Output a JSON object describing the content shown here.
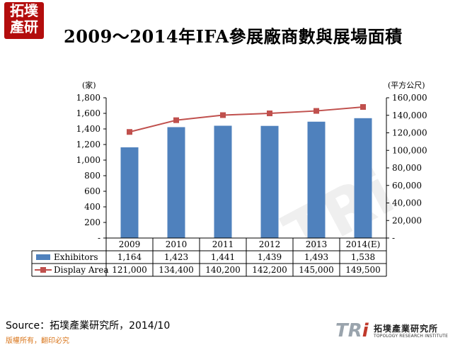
{
  "header": {
    "logo_text": "拓墣產研",
    "title": "2009～2014年IFA參展廠商數與展場面積"
  },
  "chart_data": {
    "type": "bar",
    "categories": [
      "2009",
      "2010",
      "2011",
      "2012",
      "2013",
      "2014(E)"
    ],
    "left_unit": "(家)",
    "right_unit": "(平方公尺)",
    "ylim_left": [
      0,
      1800
    ],
    "ylim_right": [
      0,
      160000
    ],
    "left_ticks": [
      "-",
      "200",
      "400",
      "600",
      "800",
      "1,000",
      "1,200",
      "1,400",
      "1,600",
      "1,800"
    ],
    "right_ticks": [
      "-",
      "20,000",
      "40,000",
      "60,000",
      "80,000",
      "100,000",
      "120,000",
      "140,000",
      "160,000"
    ],
    "series": [
      {
        "name": "Exhibitors",
        "type": "bar",
        "axis": "left",
        "color": "#4f81bd",
        "values": [
          1164,
          1423,
          1441,
          1439,
          1493,
          1538
        ],
        "labels": [
          "1,164",
          "1,423",
          "1,441",
          "1,439",
          "1,493",
          "1,538"
        ]
      },
      {
        "name": "Display Area",
        "type": "line",
        "axis": "right",
        "color": "#c0504d",
        "values": [
          121000,
          134400,
          140200,
          142200,
          145000,
          149500
        ],
        "labels": [
          "121,000",
          "134,400",
          "140,200",
          "142,200",
          "145,000",
          "149,500"
        ]
      }
    ]
  },
  "footer": {
    "source": "Source：拓墣產業研究所，2014/10",
    "copyright": "版權所有，翻印必究",
    "logo_letters": "TR",
    "logo_i": "i",
    "logo_cn": "拓墣產業研究所",
    "logo_en": "TOPOLOGY RESEARCH INSTITUTE"
  }
}
